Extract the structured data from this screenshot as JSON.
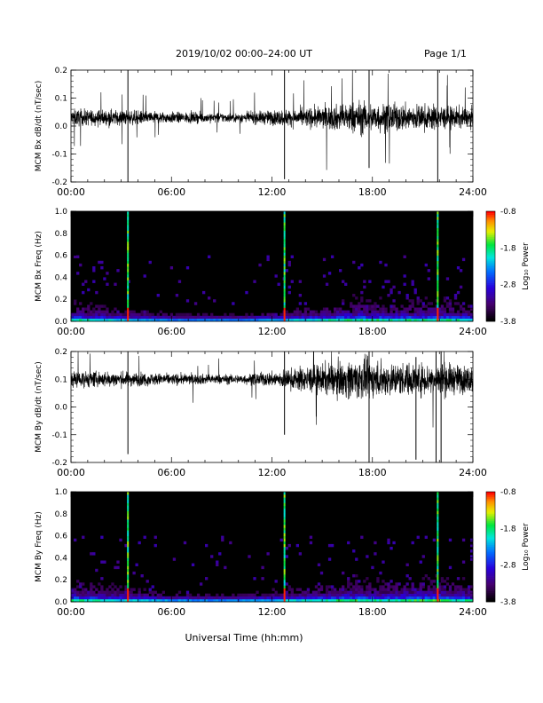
{
  "header": {
    "title": "2019/10/02  00:00–24:00 UT",
    "page": "Page 1/1"
  },
  "xlabel": "Universal Time (hh:mm)",
  "colorbar_label": "Log₁₀ Power",
  "chart_data": [
    {
      "type": "line",
      "name": "bx-time-series",
      "ylabel": "MCM Bx dB/dt (nT/sec)",
      "xlim": [
        0,
        24
      ],
      "ylim": [
        -0.2,
        0.2
      ],
      "y_ticks": [
        "0.2",
        "0.1",
        "0.0",
        "-0.1",
        "-0.2"
      ],
      "x_ticks": [
        "00:00",
        "06:00",
        "12:00",
        "18:00",
        "24:00"
      ],
      "baseline": 0.03,
      "envelope": [
        [
          0,
          0.045
        ],
        [
          3,
          0.04
        ],
        [
          6,
          0.03
        ],
        [
          10,
          0.025
        ],
        [
          12,
          0.04
        ],
        [
          14,
          0.05
        ],
        [
          16,
          0.07
        ],
        [
          17,
          0.09
        ],
        [
          18,
          0.08
        ],
        [
          19,
          0.075
        ],
        [
          21,
          0.07
        ],
        [
          22,
          0.065
        ],
        [
          24,
          0.05
        ]
      ],
      "spikes": [
        {
          "x": 3.4,
          "y_min": -0.2,
          "y_max": 0.2
        },
        {
          "x": 12.75,
          "y_min": -0.19,
          "y_max": 0.2
        },
        {
          "x": 17.8,
          "y_min": -0.15,
          "y_max": 0.2
        },
        {
          "x": 21.9,
          "y_min": -0.2,
          "y_max": 0.2
        }
      ]
    },
    {
      "type": "heatmap",
      "name": "bx-spectrogram",
      "ylabel": "MCM Bx Freq (Hz)",
      "xlim": [
        0,
        24
      ],
      "ylim": [
        0,
        1.0
      ],
      "y_ticks": [
        "1.0",
        "0.8",
        "0.6",
        "0.4",
        "0.2",
        "0.0"
      ],
      "x_ticks": [
        "00:00",
        "06:00",
        "12:00",
        "18:00",
        "24:00"
      ],
      "color_range": [
        -3.8,
        -0.8
      ],
      "colorbar_ticks": [
        "-0.8",
        "-1.8",
        "-2.8",
        "-3.8"
      ],
      "hot_columns": [
        3.4,
        12.75,
        21.9
      ],
      "activity": [
        [
          0,
          0.8
        ],
        [
          3,
          0.6
        ],
        [
          6,
          0.4
        ],
        [
          10,
          0.35
        ],
        [
          12,
          0.5
        ],
        [
          15,
          0.7
        ],
        [
          17,
          0.9
        ],
        [
          19,
          0.8
        ],
        [
          21,
          0.85
        ],
        [
          22,
          0.9
        ],
        [
          24,
          0.7
        ]
      ]
    },
    {
      "type": "line",
      "name": "by-time-series",
      "ylabel": "MCM By dB/dt (nT/sec)",
      "xlim": [
        0,
        24
      ],
      "ylim": [
        -0.2,
        0.2
      ],
      "y_ticks": [
        "0.2",
        "0.1",
        "0.0",
        "-0.1",
        "-0.2"
      ],
      "x_ticks": [
        "00:00",
        "06:00",
        "12:00",
        "18:00",
        "24:00"
      ],
      "baseline": 0.1,
      "envelope": [
        [
          0,
          0.045
        ],
        [
          3,
          0.04
        ],
        [
          6,
          0.03
        ],
        [
          10,
          0.025
        ],
        [
          12,
          0.04
        ],
        [
          14,
          0.07
        ],
        [
          16,
          0.09
        ],
        [
          17,
          0.11
        ],
        [
          18,
          0.1
        ],
        [
          19,
          0.09
        ],
        [
          21,
          0.085
        ],
        [
          22,
          0.09
        ],
        [
          24,
          0.07
        ]
      ],
      "spikes": [
        {
          "x": 3.4,
          "y_min": -0.17,
          "y_max": 0.2
        },
        {
          "x": 12.75,
          "y_min": -0.1,
          "y_max": 0.2
        },
        {
          "x": 17.8,
          "y_min": -0.2,
          "y_max": 0.2
        },
        {
          "x": 20.6,
          "y_min": -0.19,
          "y_max": 0.18
        },
        {
          "x": 21.8,
          "y_min": -0.2,
          "y_max": 0.2
        },
        {
          "x": 22.1,
          "y_min": -0.2,
          "y_max": 0.2
        }
      ]
    },
    {
      "type": "heatmap",
      "name": "by-spectrogram",
      "ylabel": "MCM By Freq (Hz)",
      "xlim": [
        0,
        24
      ],
      "ylim": [
        0,
        1.0
      ],
      "y_ticks": [
        "1.0",
        "0.8",
        "0.6",
        "0.4",
        "0.2",
        "0.0"
      ],
      "x_ticks": [
        "00:00",
        "06:00",
        "12:00",
        "18:00",
        "24:00"
      ],
      "color_range": [
        -3.8,
        -0.8
      ],
      "colorbar_ticks": [
        "-0.8",
        "-1.8",
        "-2.8",
        "-3.8"
      ],
      "hot_columns": [
        3.4,
        12.75,
        21.9
      ],
      "activity": [
        [
          0,
          0.85
        ],
        [
          3,
          0.65
        ],
        [
          6,
          0.45
        ],
        [
          10,
          0.4
        ],
        [
          12,
          0.55
        ],
        [
          15,
          0.75
        ],
        [
          17,
          0.9
        ],
        [
          19,
          0.8
        ],
        [
          21,
          0.95
        ],
        [
          22,
          0.95
        ],
        [
          24,
          0.75
        ]
      ]
    }
  ]
}
